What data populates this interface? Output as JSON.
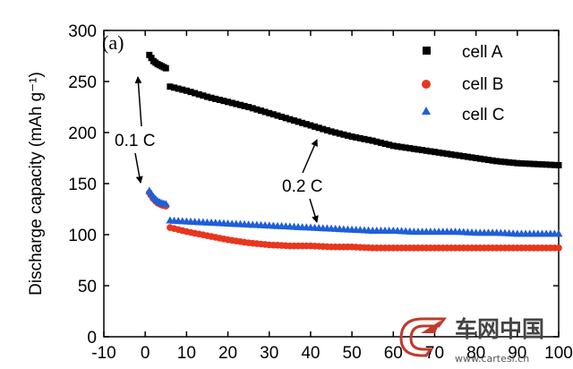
{
  "chart_data": {
    "type": "scatter",
    "panel_label": "(a)",
    "xlabel": "",
    "ylabel": "Discharge capacity (mAh g⁻¹)",
    "xlim": [
      -10,
      100
    ],
    "ylim": [
      0,
      300
    ],
    "xticks": [
      -10,
      0,
      10,
      20,
      30,
      40,
      50,
      60,
      70,
      80,
      90,
      100
    ],
    "yticks": [
      0,
      50,
      100,
      150,
      200,
      250,
      300
    ],
    "grid": false,
    "legend_position": "top-right",
    "series": [
      {
        "name": "cell A",
        "color": "#000000",
        "marker": "square",
        "x": [
          1,
          2,
          3,
          4,
          5,
          6,
          10,
          15,
          20,
          25,
          30,
          35,
          40,
          45,
          50,
          55,
          60,
          65,
          70,
          75,
          80,
          85,
          90,
          95,
          100
        ],
        "y": [
          276,
          270,
          267,
          265,
          263,
          245,
          241,
          235,
          230,
          225,
          219,
          213,
          207,
          201,
          196,
          192,
          187,
          184,
          181,
          178,
          175,
          172,
          170,
          169,
          168
        ]
      },
      {
        "name": "cell B",
        "color": "#e8361e",
        "marker": "circle",
        "x": [
          1,
          2,
          3,
          4,
          5,
          6,
          10,
          15,
          20,
          25,
          30,
          35,
          40,
          45,
          50,
          55,
          60,
          65,
          70,
          75,
          80,
          85,
          90,
          95,
          100
        ],
        "y": [
          141,
          135,
          131,
          129,
          128,
          107,
          103,
          99,
          95,
          92,
          90,
          89,
          89,
          88,
          88,
          87,
          87,
          87,
          87,
          87,
          87,
          87,
          87,
          87,
          87
        ]
      },
      {
        "name": "cell C",
        "color": "#1f5fd6",
        "marker": "triangle",
        "x": [
          1,
          2,
          3,
          4,
          5,
          6,
          10,
          15,
          20,
          25,
          30,
          35,
          40,
          45,
          50,
          55,
          60,
          65,
          70,
          75,
          80,
          85,
          90,
          95,
          100
        ],
        "y": [
          143,
          137,
          133,
          131,
          130,
          114,
          113,
          112,
          111,
          110,
          109,
          108,
          107,
          106,
          105,
          104,
          104,
          103,
          103,
          103,
          102,
          102,
          101,
          101,
          101
        ]
      }
    ],
    "annotations": [
      {
        "text": "0.1 C"
      },
      {
        "text": "0.2 C"
      }
    ]
  },
  "watermark": {
    "cn_text": "车网中国",
    "url_text": "www.cartesi.cn"
  }
}
